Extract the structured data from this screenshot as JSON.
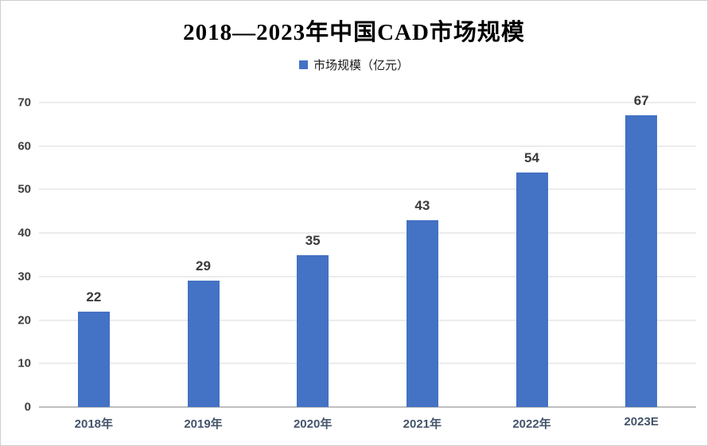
{
  "title": "2018—2023年中国CAD市场规模",
  "legend": {
    "label": "市场规模（亿元）",
    "swatch_icon": "legend-square",
    "swatch_color": "#4472C4"
  },
  "colors": {
    "bar": "#4472C4",
    "gridline": "#d9d9d9",
    "axis_line": "#bfbfbf",
    "y_tick_label": "#404040",
    "x_tick_label": "#44546A",
    "data_label": "#3a3a3a",
    "title": "#000000"
  },
  "chart_data": {
    "type": "bar",
    "title": "2018—2023年中国CAD市场规模",
    "categories": [
      "2018年",
      "2019年",
      "2020年",
      "2021年",
      "2022年",
      "2023E"
    ],
    "values": [
      22,
      29,
      35,
      43,
      54,
      67
    ],
    "data_labels": [
      "22",
      "29",
      "35",
      "43",
      "54",
      "67"
    ],
    "series_name": "市场规模（亿元）",
    "xlabel": "",
    "ylabel": "",
    "ylim": [
      0,
      70
    ],
    "yticks": [
      0,
      10,
      20,
      30,
      40,
      50,
      60,
      70
    ],
    "grid": "horizontal",
    "legend_position": "top",
    "bar_color": "#4472C4"
  }
}
